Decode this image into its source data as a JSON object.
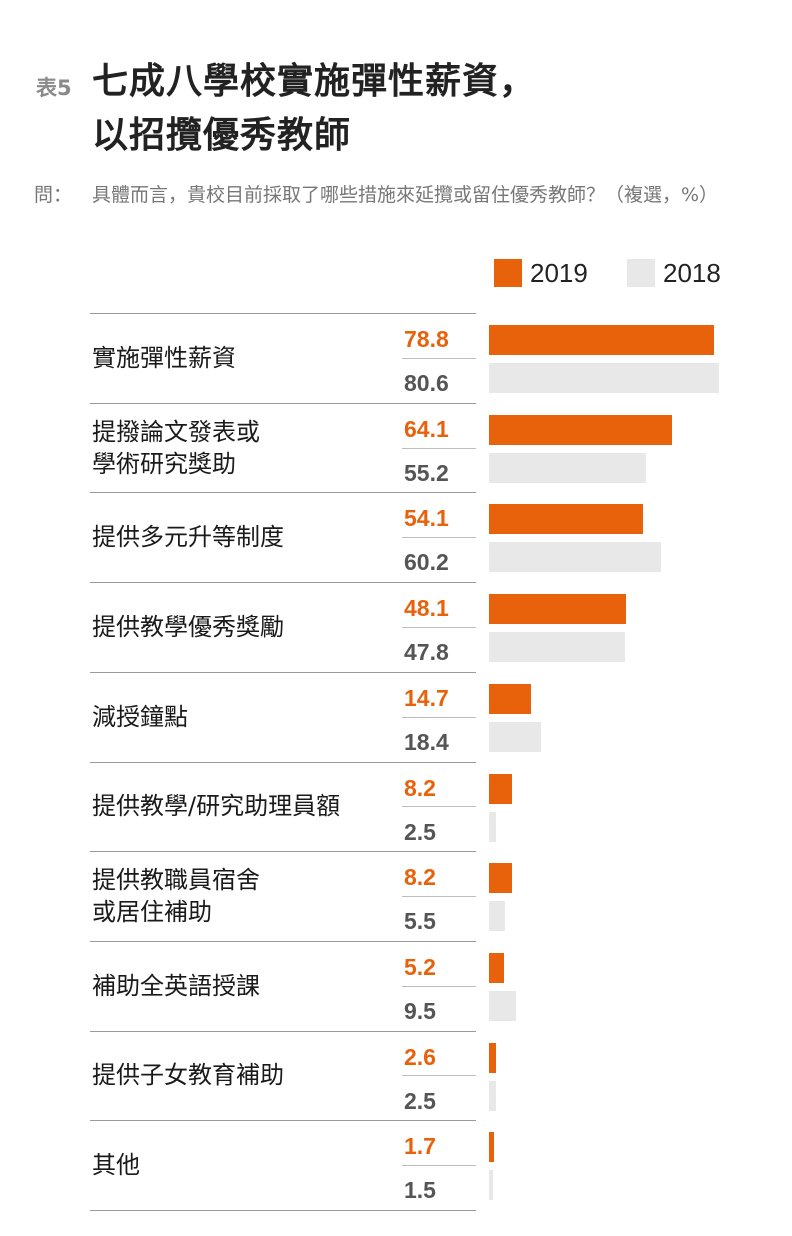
{
  "table_label": "表5",
  "title_lines": [
    "七成八學校實施彈性薪資，",
    "以招攬優秀教師"
  ],
  "question_label": "問：",
  "question_text": "具體而言，貴校目前採取了哪些措施來延攬或留住優秀教師？（複選，%）",
  "colors": {
    "y2019": "#e8620c",
    "y2018": "#e8e8e8"
  },
  "chart_data": {
    "type": "bar",
    "orientation": "horizontal",
    "title": "七成八學校實施彈性薪資，以招攬優秀教師",
    "unit": "%",
    "legend": [
      "2019",
      "2018"
    ],
    "legend_position": "top-right",
    "categories": [
      [
        "實施彈性薪資"
      ],
      [
        "提撥論文發表或",
        "學術研究獎助"
      ],
      [
        "提供多元升等制度"
      ],
      [
        "提供教學優秀獎勵"
      ],
      [
        "減授鐘點"
      ],
      [
        "提供教學/研究助理員額"
      ],
      [
        "提供教職員宿舍",
        "或居住補助"
      ],
      [
        "補助全英語授課"
      ],
      [
        "提供子女教育補助"
      ],
      [
        "其他"
      ]
    ],
    "series": [
      {
        "name": "2019",
        "values": [
          78.8,
          64.1,
          54.1,
          48.1,
          14.7,
          8.2,
          8.2,
          5.2,
          2.6,
          1.7
        ]
      },
      {
        "name": "2018",
        "values": [
          80.6,
          55.2,
          60.2,
          47.8,
          18.4,
          2.5,
          5.5,
          9.5,
          2.5,
          1.5
        ]
      }
    ]
  }
}
